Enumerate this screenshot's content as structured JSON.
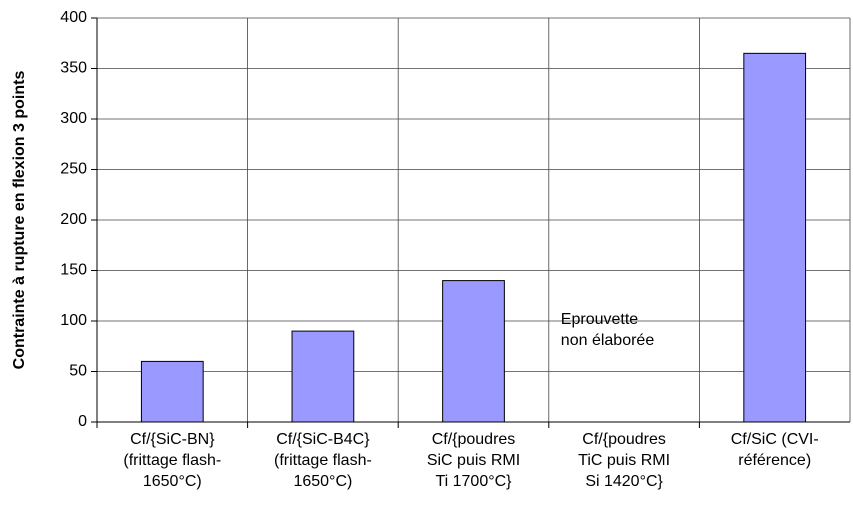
{
  "chart_data": {
    "type": "bar",
    "ylabel": "Contrainte à rupture en flexion 3 points",
    "categories": [
      [
        "Cf/{SiC-BN}",
        "(frittage flash-",
        "1650°C)"
      ],
      [
        "Cf/{SiC-B4C}",
        "(frittage flash-",
        "1650°C)"
      ],
      [
        "Cf/{poudres",
        "SiC puis RMI",
        "Ti 1700°C}"
      ],
      [
        "Cf/{poudres",
        "TiC puis RMI",
        "Si 1420°C}"
      ],
      [
        "Cf/SiC (CVI-",
        "référence)"
      ]
    ],
    "values": [
      60,
      90,
      140,
      null,
      365
    ],
    "color": "#9999ff",
    "ylim": [
      0,
      400
    ],
    "yticks": [
      0,
      50,
      100,
      150,
      200,
      250,
      300,
      350,
      400
    ],
    "grid": true,
    "annotation": [
      "Eprouvette",
      "non élaborée"
    ]
  }
}
